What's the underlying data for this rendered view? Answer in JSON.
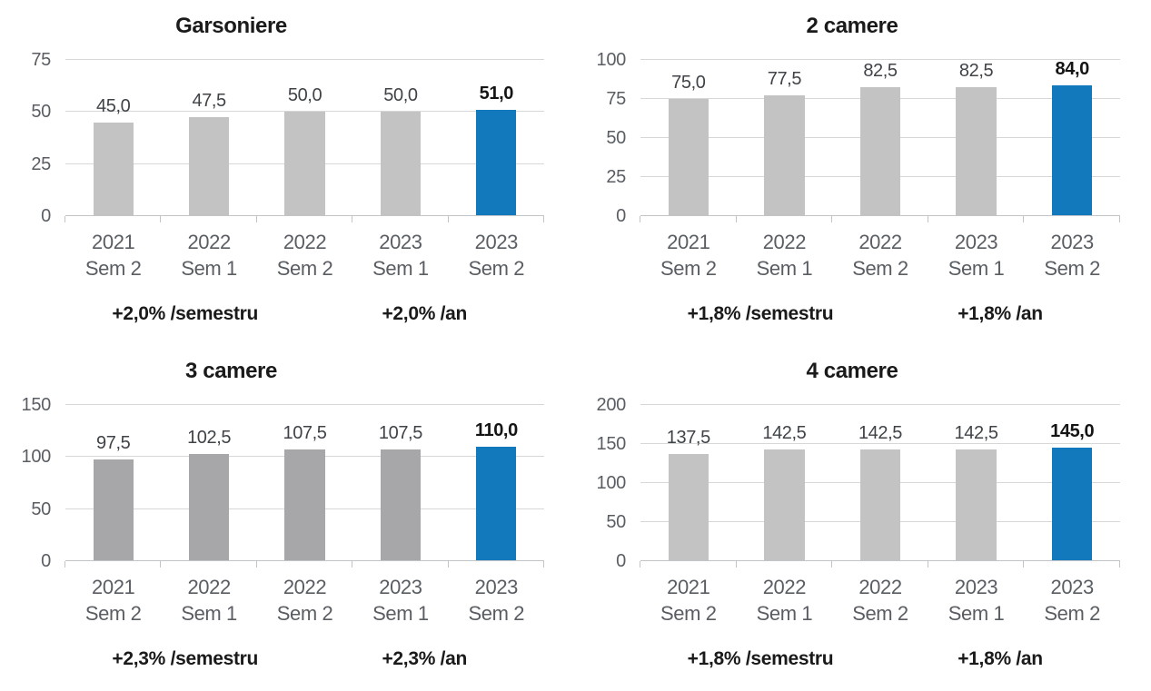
{
  "page": {
    "background": "#ffffff"
  },
  "colors": {
    "highlight_blue": "#1379bd",
    "bar_gray_light": "#c3c3c4",
    "bar_gray_dark": "#a7a7a9",
    "gridline": "#d7d7d7",
    "axis_line": "#c2c5c7",
    "axis_label_gray": "#5a5e63",
    "value_label_gray": "#3f4347",
    "text_dark": "#1a1a1a"
  },
  "chart_data": [
    {
      "type": "bar",
      "title": "Garsoniere",
      "categories": [
        "2021 Sem 2",
        "2022 Sem 1",
        "2022 Sem 2",
        "2023 Sem 1",
        "2023 Sem 2"
      ],
      "values": [
        45.0,
        47.5,
        50.0,
        50.0,
        51.0
      ],
      "value_labels": [
        "45,0",
        "47,5",
        "50,0",
        "50,0",
        "51,0"
      ],
      "ylim": [
        0,
        75
      ],
      "yticks": [
        0,
        25,
        50,
        75
      ],
      "grid": true,
      "legend": false,
      "highlight_index": 4,
      "bar_color": "#c3c3c4",
      "highlight_color": "#1379bd",
      "annotations": [
        "+2,0% /semestru",
        "+2,0% /an"
      ]
    },
    {
      "type": "bar",
      "title": "2 camere",
      "categories": [
        "2021 Sem 2",
        "2022 Sem 1",
        "2022 Sem 2",
        "2023 Sem 1",
        "2023 Sem 2"
      ],
      "values": [
        75.0,
        77.5,
        82.5,
        82.5,
        84.0
      ],
      "value_labels": [
        "75,0",
        "77,5",
        "82,5",
        "82,5",
        "84,0"
      ],
      "ylim": [
        0,
        100
      ],
      "yticks": [
        0,
        25,
        50,
        75,
        100
      ],
      "grid": true,
      "legend": false,
      "highlight_index": 4,
      "bar_color": "#c3c3c4",
      "highlight_color": "#1379bd",
      "annotations": [
        "+1,8% /semestru",
        "+1,8% /an"
      ]
    },
    {
      "type": "bar",
      "title": "3 camere",
      "categories": [
        "2021 Sem 2",
        "2022 Sem 1",
        "2022 Sem 2",
        "2023 Sem 1",
        "2023 Sem 2"
      ],
      "values": [
        97.5,
        102.5,
        107.5,
        107.5,
        110.0
      ],
      "value_labels": [
        "97,5",
        "102,5",
        "107,5",
        "107,5",
        "110,0"
      ],
      "ylim": [
        0,
        150
      ],
      "yticks": [
        0,
        50,
        100,
        150
      ],
      "grid": true,
      "legend": false,
      "highlight_index": 4,
      "bar_color": "#a7a7a9",
      "highlight_color": "#1379bd",
      "annotations": [
        "+2,3% /semestru",
        "+2,3% /an"
      ]
    },
    {
      "type": "bar",
      "title": "4 camere",
      "categories": [
        "2021 Sem 2",
        "2022 Sem 1",
        "2022 Sem 2",
        "2023 Sem 1",
        "2023 Sem 2"
      ],
      "values": [
        137.5,
        142.5,
        142.5,
        142.5,
        145.0
      ],
      "value_labels": [
        "137,5",
        "142,5",
        "142,5",
        "142,5",
        "145,0"
      ],
      "ylim": [
        0,
        200
      ],
      "yticks": [
        0,
        50,
        100,
        150,
        200
      ],
      "grid": true,
      "legend": false,
      "highlight_index": 4,
      "bar_color": "#c3c3c4",
      "highlight_color": "#1379bd",
      "annotations": [
        "+1,8% /semestru",
        "+1,8% /an"
      ]
    }
  ]
}
